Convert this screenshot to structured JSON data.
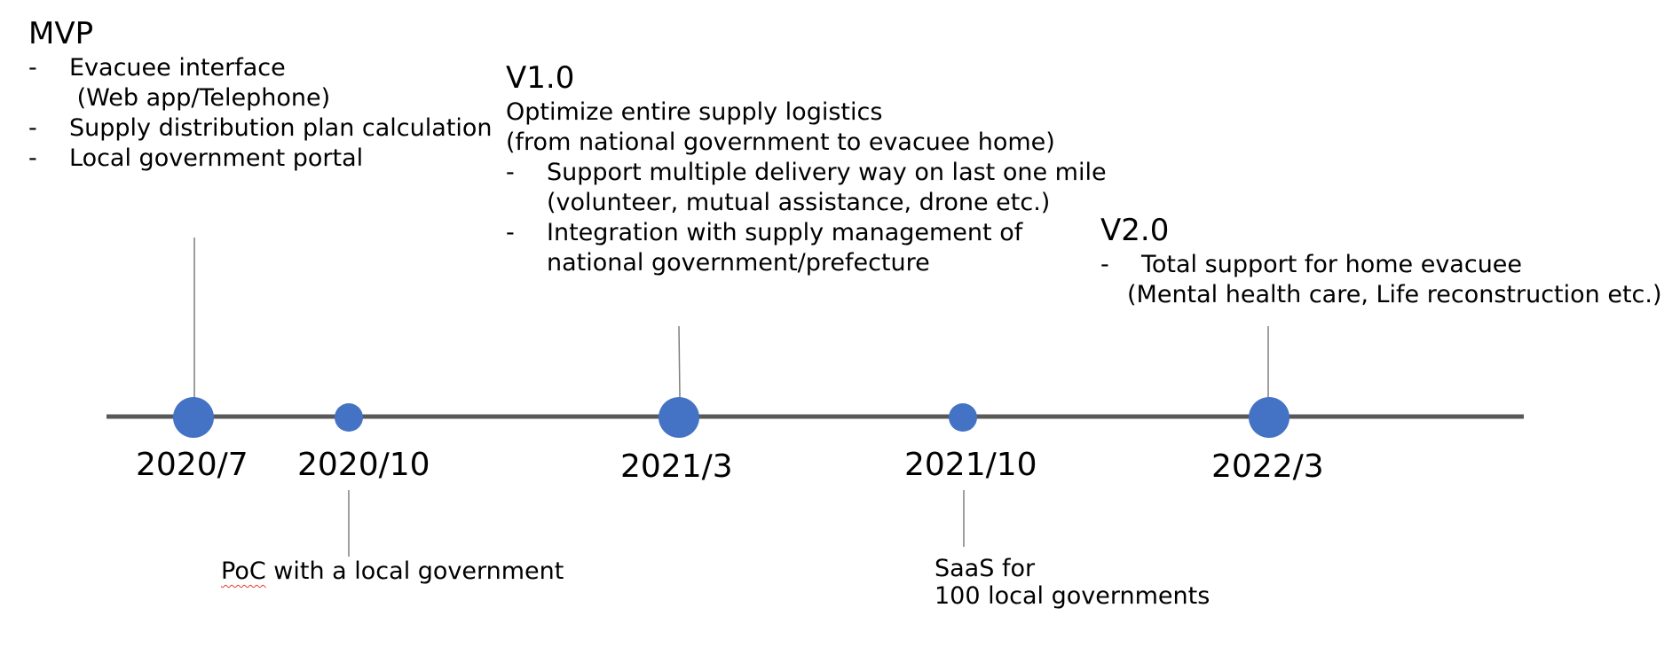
{
  "colors": {
    "axis": "#595959",
    "marker": "#4472c4",
    "connector": "#7f7f7f",
    "text": "#000000",
    "spellcheck": "#e03c31"
  },
  "mvp": {
    "title": "MVP",
    "items": [
      {
        "dash": "-",
        "lines": [
          "Evacuee interface",
          " (Web app/Telephone)"
        ]
      },
      {
        "dash": "-",
        "lines": [
          "Supply distribution plan calculation"
        ]
      },
      {
        "dash": "-",
        "lines": [
          "Local government portal"
        ]
      }
    ]
  },
  "v1": {
    "title": "V1.0",
    "intro": [
      "Optimize entire supply logistics",
      "(from national government to evacuee home)"
    ],
    "items": [
      {
        "dash": "-",
        "lines": [
          "Support multiple delivery way on last one mile",
          "(volunteer, mutual assistance, drone etc.)"
        ]
      },
      {
        "dash": "-",
        "lines": [
          "Integration with supply management of",
          "national government/prefecture"
        ]
      }
    ]
  },
  "v2": {
    "title": "V2.0",
    "items": [
      {
        "dash": "-",
        "lines": [
          "Total support for home evacuee"
        ]
      }
    ],
    "continuation": "(Mental health care, Life reconstruction etc.)"
  },
  "milestones": [
    {
      "date": "2020/7",
      "size": "large"
    },
    {
      "date": "2020/10",
      "size": "small"
    },
    {
      "date": "2021/3",
      "size": "large"
    },
    {
      "date": "2021/10",
      "size": "small"
    },
    {
      "date": "2022/3",
      "size": "large"
    }
  ],
  "notes": {
    "poc_word": "PoC",
    "poc_rest": " with a local government",
    "saas_lines": [
      "SaaS for",
      "100 local governments"
    ]
  }
}
